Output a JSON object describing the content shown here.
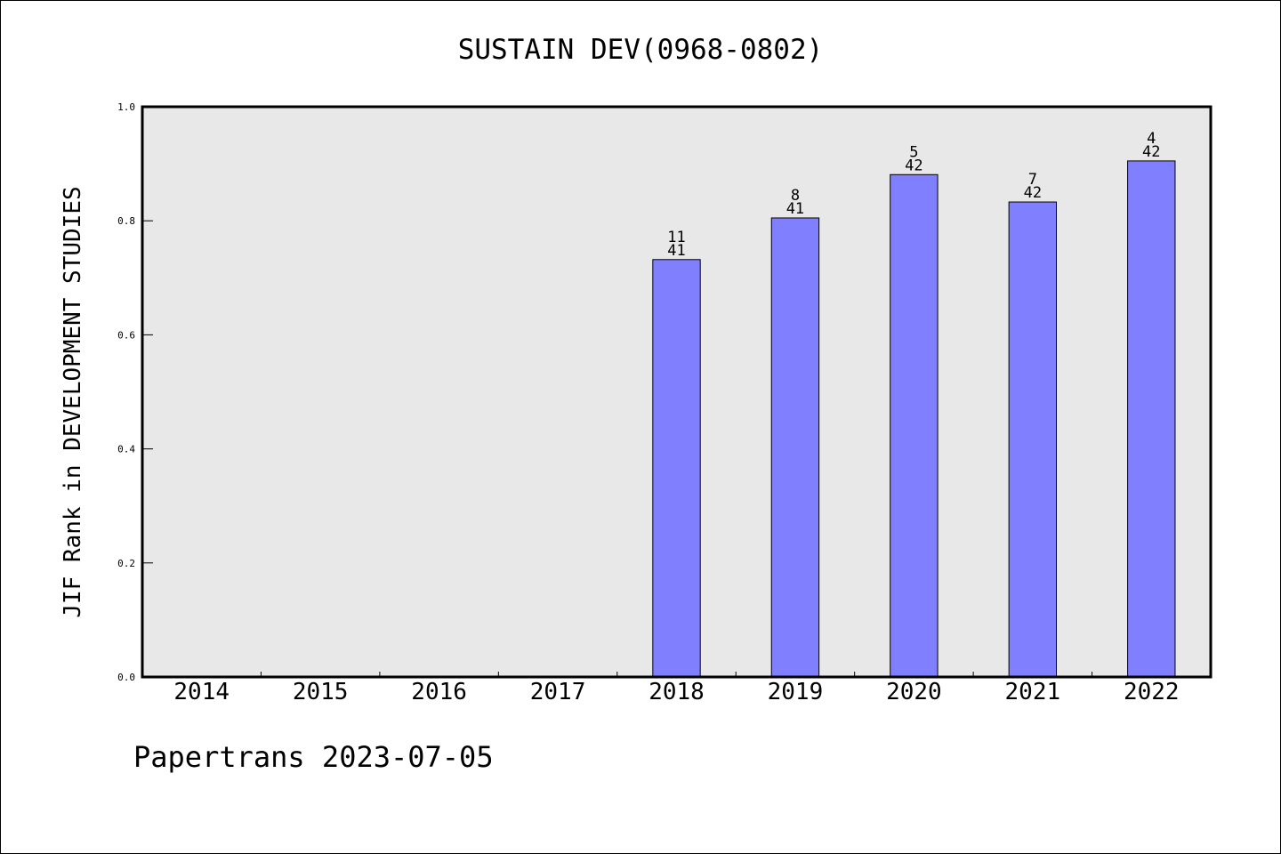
{
  "chart_data": {
    "type": "bar",
    "title": "SUSTAIN DEV(0968-0802)",
    "ylabel": "JIF Rank in DEVELOPMENT STUDIES",
    "xlabel": "",
    "categories": [
      "2014",
      "2015",
      "2016",
      "2017",
      "2018",
      "2019",
      "2020",
      "2021",
      "2022"
    ],
    "values": [
      null,
      null,
      null,
      null,
      0.732,
      0.805,
      0.881,
      0.833,
      0.905
    ],
    "rank": [
      null,
      null,
      null,
      null,
      "11",
      "8",
      "5",
      "7",
      "4"
    ],
    "total": [
      null,
      null,
      null,
      null,
      "41",
      "41",
      "42",
      "42",
      "42"
    ],
    "ylim": [
      0,
      1.0
    ],
    "yticks": [
      "0.0",
      "0.2",
      "0.4",
      "0.6",
      "0.8",
      "1.0"
    ],
    "grid": false,
    "colors": {
      "bar": "#8080ff",
      "plot_bg": "#e8e8e8",
      "axis": "#000000"
    }
  },
  "footer": "Papertrans 2023-07-05"
}
